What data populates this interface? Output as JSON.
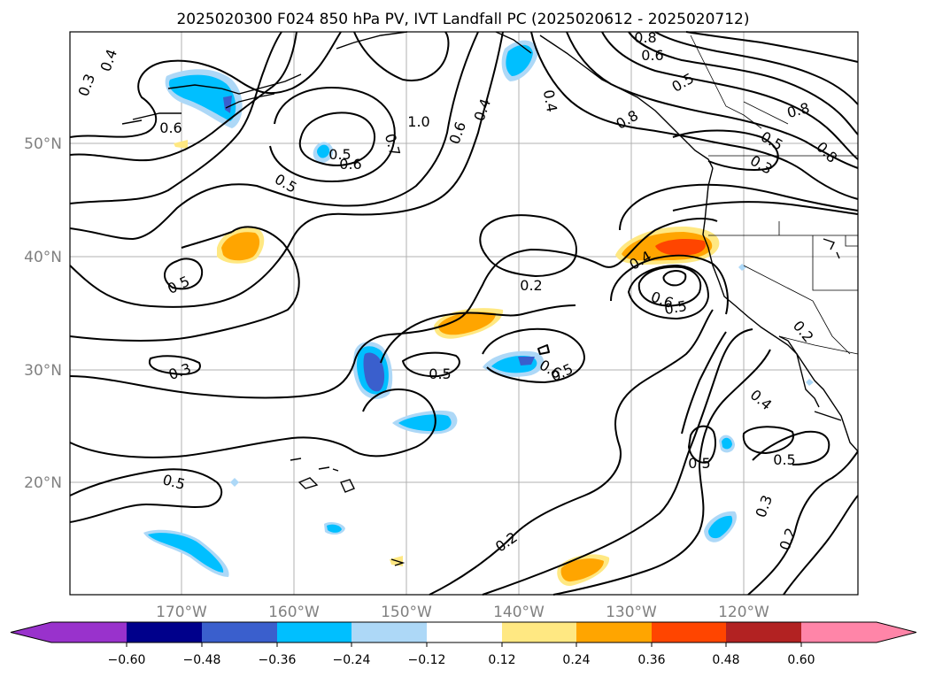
{
  "title": "2025020300 F024 850 hPa PV, IVT Landfall PC (2025020612 - 2025020712)",
  "latitude_labels": [
    "50°N",
    "40°N",
    "30°N",
    "20°N"
  ],
  "longitude_labels": [
    "170°W",
    "160°W",
    "150°W",
    "140°W",
    "130°W",
    "120°W"
  ],
  "colorbar": {
    "tick_labels": [
      "−0.60",
      "−0.48",
      "−0.36",
      "−0.24",
      "−0.12",
      "0.12",
      "0.24",
      "0.36",
      "0.48",
      "0.60"
    ],
    "colors": [
      "#9932cc",
      "#00008b",
      "#3a5fcd",
      "#00bfff",
      "#add8f7",
      "#ffffff",
      "#ffe882",
      "#ffa500",
      "#ff4500",
      "#b22222",
      "#ff85a8"
    ]
  },
  "contour_labels": [
    "0.4",
    "0.3",
    "0.6",
    "0.5",
    "0.6",
    "0.7",
    "1.0",
    "0.6",
    "0.4",
    "0.4",
    "0.8",
    "0.6",
    "0.8",
    "0.5",
    "0.8",
    "0.5",
    "0.3",
    "0.8",
    "0.5",
    "0.4",
    "0.6",
    "0.5",
    "0.2",
    "0.5",
    "0.3",
    "0.6",
    "0.5",
    "0.2",
    "0.4",
    "0.5",
    "0.5",
    "0.3",
    "0.2",
    "0.2",
    "0.5",
    "0.5"
  ]
}
